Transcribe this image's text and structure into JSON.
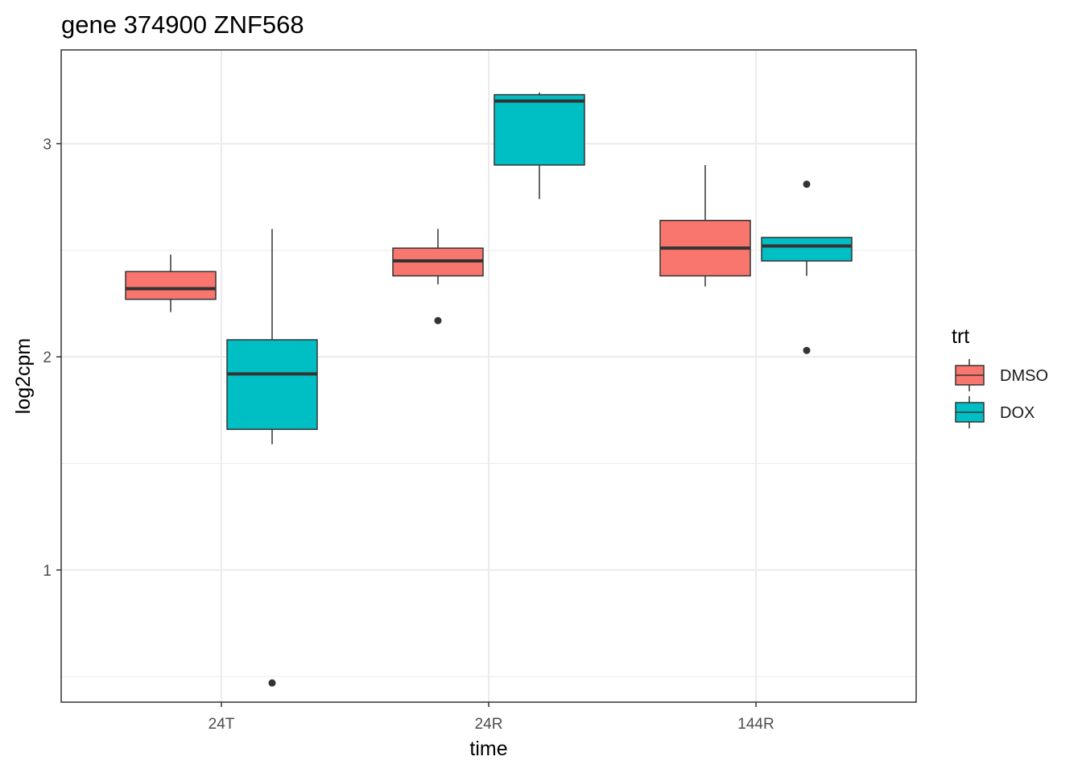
{
  "chart_data": {
    "type": "boxplot",
    "title": "gene 374900 ZNF568",
    "xlabel": "time",
    "ylabel": "log2cpm",
    "categories": [
      "24T",
      "24R",
      "144R"
    ],
    "ylim": [
      0.38,
      3.44
    ],
    "yticks": [
      1,
      2,
      3
    ],
    "y_minor_gridlines": [
      0.5,
      1.5,
      2.5
    ],
    "grid": true,
    "legend_position": "right",
    "legend": {
      "title": "trt",
      "entries": [
        {
          "name": "DMSO",
          "color": "#F8766D"
        },
        {
          "name": "DOX",
          "color": "#00BFC4"
        }
      ]
    },
    "series": [
      {
        "name": "DMSO",
        "color": "#F8766D",
        "boxes": [
          {
            "category": "24T",
            "whisker_low": 2.21,
            "q1": 2.27,
            "median": 2.32,
            "q3": 2.4,
            "whisker_high": 2.48,
            "outliers": []
          },
          {
            "category": "24R",
            "whisker_low": 2.34,
            "q1": 2.38,
            "median": 2.45,
            "q3": 2.51,
            "whisker_high": 2.6,
            "outliers": [
              2.17
            ]
          },
          {
            "category": "144R",
            "whisker_low": 2.33,
            "q1": 2.38,
            "median": 2.51,
            "q3": 2.64,
            "whisker_high": 2.9,
            "outliers": []
          }
        ]
      },
      {
        "name": "DOX",
        "color": "#00BFC4",
        "boxes": [
          {
            "category": "24T",
            "whisker_low": 1.59,
            "q1": 1.66,
            "median": 1.92,
            "q3": 2.08,
            "whisker_high": 2.6,
            "outliers": [
              0.47
            ]
          },
          {
            "category": "24R",
            "whisker_low": 2.74,
            "q1": 2.9,
            "median": 3.2,
            "q3": 3.23,
            "whisker_high": 3.24,
            "outliers": []
          },
          {
            "category": "144R",
            "whisker_low": 2.38,
            "q1": 2.45,
            "median": 2.52,
            "q3": 2.56,
            "whisker_high": 2.56,
            "outliers": [
              2.81,
              2.03
            ]
          }
        ]
      }
    ]
  }
}
